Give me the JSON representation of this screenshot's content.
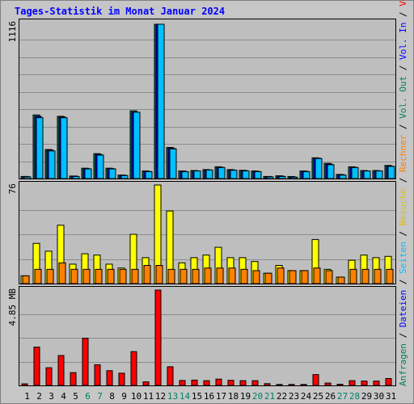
{
  "title": "Tages-Statistik im Monat Januar 2024",
  "colors": {
    "hits": "#00805c",
    "files": "#0000ff",
    "pages": "#00c0ff",
    "visits": "#ffff00",
    "sites": "#ff8000",
    "kbytes": "#ff0000",
    "blue": "#0000ff",
    "weekday": "#000000",
    "weekend": "#008060"
  },
  "right_label": [
    {
      "text": "Anfragen",
      "color": "#008060"
    },
    {
      "text": " / ",
      "color": "#000000"
    },
    {
      "text": "Dateien",
      "color": "#0000ff"
    },
    {
      "text": " / ",
      "color": "#000000"
    },
    {
      "text": "Seiten",
      "color": "#00c0ff"
    },
    {
      "text": " / ",
      "color": "#000000"
    },
    {
      "text": "Besuche",
      "color": "#e0c000"
    },
    {
      "text": " / ",
      "color": "#000000"
    },
    {
      "text": "Rechner",
      "color": "#ff8000"
    },
    {
      "text": " / ",
      "color": "#000000"
    },
    {
      "text": "Vol. Out",
      "color": "#00805c"
    },
    {
      "text": " / ",
      "color": "#000000"
    },
    {
      "text": "Vol. In",
      "color": "#0000ff"
    },
    {
      "text": " / ",
      "color": "#000000"
    },
    {
      "text": "Volumen",
      "color": "#ff0000"
    }
  ],
  "chart_data": [
    {
      "type": "bar",
      "name": "hits-files-pages",
      "ymax_label": "1116",
      "ymax": 1116,
      "x": [
        "1",
        "2",
        "3",
        "4",
        "5",
        "6",
        "7",
        "8",
        "9",
        "10",
        "11",
        "12",
        "13",
        "14",
        "15",
        "16",
        "17",
        "18",
        "19",
        "20",
        "21",
        "22",
        "23",
        "24",
        "25",
        "26",
        "27",
        "28",
        "29",
        "30",
        "31"
      ],
      "series": [
        {
          "name": "Anfragen",
          "values": [
            15,
            460,
            210,
            450,
            18,
            75,
            180,
            75,
            25,
            490,
            55,
            1116,
            225,
            55,
            58,
            65,
            85,
            65,
            60,
            55,
            15,
            20,
            15,
            55,
            150,
            110,
            30,
            85,
            58,
            58,
            95
          ]
        },
        {
          "name": "Dateien",
          "values": [
            15,
            450,
            205,
            445,
            18,
            72,
            175,
            72,
            25,
            480,
            52,
            1116,
            220,
            52,
            55,
            62,
            82,
            62,
            58,
            52,
            15,
            18,
            12,
            52,
            148,
            105,
            28,
            82,
            55,
            55,
            90
          ]
        },
        {
          "name": "Seiten",
          "values": [
            12,
            440,
            200,
            440,
            15,
            70,
            170,
            70,
            22,
            480,
            50,
            1116,
            215,
            50,
            55,
            62,
            80,
            60,
            55,
            50,
            12,
            15,
            10,
            50,
            145,
            100,
            25,
            80,
            55,
            55,
            88
          ]
        }
      ]
    },
    {
      "type": "bar",
      "name": "visits-sites",
      "ymax_label": "76",
      "ymax": 76,
      "x": [
        "1",
        "2",
        "3",
        "4",
        "5",
        "6",
        "7",
        "8",
        "9",
        "10",
        "11",
        "12",
        "13",
        "14",
        "15",
        "16",
        "17",
        "18",
        "19",
        "20",
        "21",
        "22",
        "23",
        "24",
        "25",
        "26",
        "27",
        "28",
        "29",
        "30",
        "31"
      ],
      "series": [
        {
          "name": "Besuche",
          "values": [
            6,
            31,
            25,
            45,
            15,
            23,
            22,
            15,
            12,
            38,
            20,
            76,
            56,
            16,
            20,
            22,
            28,
            20,
            20,
            17,
            8,
            14,
            10,
            10,
            34,
            11,
            5,
            18,
            22,
            20,
            21
          ]
        },
        {
          "name": "Rechner",
          "values": [
            6,
            11,
            11,
            16,
            11,
            11,
            11,
            11,
            11,
            11,
            14,
            14,
            11,
            11,
            11,
            12,
            12,
            12,
            11,
            10,
            8,
            12,
            10,
            10,
            12,
            10,
            5,
            11,
            11,
            11,
            11
          ]
        }
      ]
    },
    {
      "type": "bar",
      "name": "volume",
      "ymax_label": "4.85 MB",
      "ymax": 4.85,
      "x": [
        "1",
        "2",
        "3",
        "4",
        "5",
        "6",
        "7",
        "8",
        "9",
        "10",
        "11",
        "12",
        "13",
        "14",
        "15",
        "16",
        "17",
        "18",
        "19",
        "20",
        "21",
        "22",
        "23",
        "24",
        "25",
        "26",
        "27",
        "28",
        "29",
        "30",
        "31"
      ],
      "series": [
        {
          "name": "Volumen",
          "values": [
            0.08,
            1.95,
            0.9,
            1.52,
            0.65,
            2.4,
            1.05,
            0.75,
            0.62,
            1.72,
            0.18,
            4.85,
            0.95,
            0.25,
            0.27,
            0.24,
            0.32,
            0.26,
            0.24,
            0.24,
            0.09,
            0.05,
            0.05,
            0.05,
            0.55,
            0.12,
            0.06,
            0.24,
            0.22,
            0.22,
            0.35
          ]
        }
      ]
    }
  ],
  "weekend_days": [
    6,
    7,
    13,
    14,
    20,
    21,
    27,
    28
  ]
}
